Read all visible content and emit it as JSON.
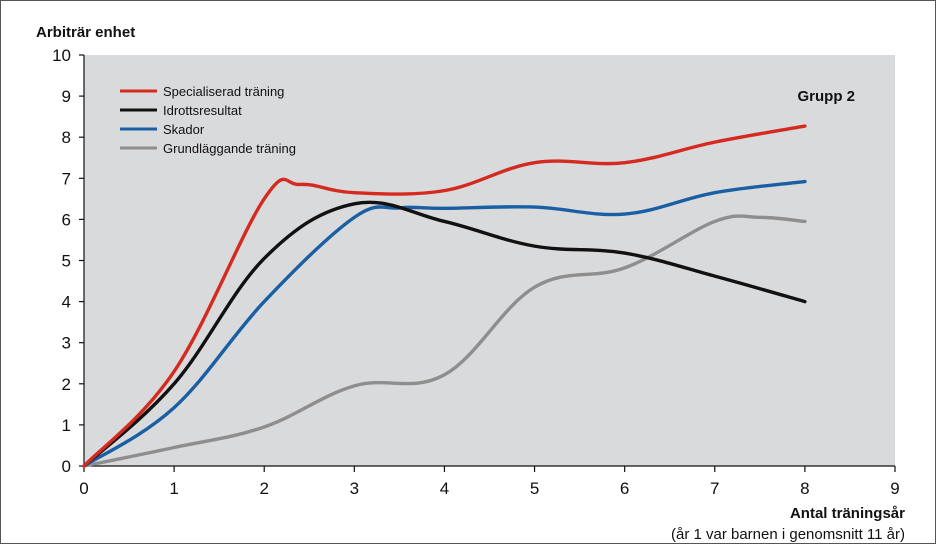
{
  "chart_data": {
    "type": "line",
    "ylabel": "Arbiträr enhet",
    "xlabel": "Antal träningsår",
    "xlabel_note": "(år 1 var barnen i genomsnitt 11 år)",
    "annotation": "Grupp 2",
    "xlim": [
      0,
      9
    ],
    "ylim": [
      0,
      10
    ],
    "xticks": [
      0,
      1,
      2,
      3,
      4,
      5,
      6,
      7,
      8,
      9
    ],
    "yticks": [
      0,
      1,
      2,
      3,
      4,
      5,
      6,
      7,
      8,
      9,
      10
    ],
    "legend_position": "top-left",
    "plot_background": "#d9dadc",
    "series": [
      {
        "name": "Specialiserad träning",
        "color": "#d42a1f",
        "points": [
          [
            0,
            0
          ],
          [
            1,
            2.3
          ],
          [
            2,
            6.5
          ],
          [
            2.4,
            6.85
          ],
          [
            3,
            6.65
          ],
          [
            4,
            6.7
          ],
          [
            5,
            7.38
          ],
          [
            6,
            7.38
          ],
          [
            7,
            7.88
          ],
          [
            8,
            8.27
          ]
        ]
      },
      {
        "name": "Idrottsresultat",
        "color": "#111111",
        "points": [
          [
            0,
            0
          ],
          [
            1,
            2.0
          ],
          [
            2,
            5.05
          ],
          [
            3,
            6.38
          ],
          [
            4,
            5.95
          ],
          [
            5,
            5.35
          ],
          [
            6,
            5.18
          ],
          [
            7,
            4.62
          ],
          [
            8,
            4.0
          ]
        ]
      },
      {
        "name": "Skador",
        "color": "#1a5fa3",
        "points": [
          [
            0,
            0
          ],
          [
            1,
            1.42
          ],
          [
            2,
            4.0
          ],
          [
            3,
            6.05
          ],
          [
            3.5,
            6.28
          ],
          [
            4,
            6.27
          ],
          [
            5,
            6.3
          ],
          [
            6,
            6.13
          ],
          [
            7,
            6.65
          ],
          [
            8,
            6.92
          ]
        ]
      },
      {
        "name": "Grundläggande träning",
        "color": "#8e8e8e",
        "points": [
          [
            0,
            0
          ],
          [
            1,
            0.45
          ],
          [
            2,
            0.95
          ],
          [
            3,
            1.95
          ],
          [
            4,
            2.22
          ],
          [
            5,
            4.35
          ],
          [
            6,
            4.82
          ],
          [
            7,
            5.95
          ],
          [
            7.5,
            6.05
          ],
          [
            8,
            5.95
          ]
        ]
      }
    ]
  }
}
